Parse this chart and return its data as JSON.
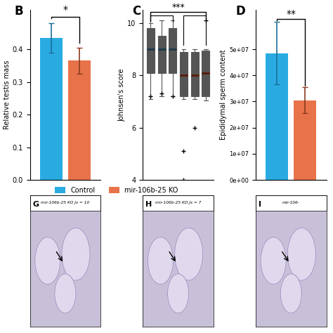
{
  "panel_B": {
    "label": "B",
    "bar_values": [
      0.435,
      0.365
    ],
    "bar_errors": [
      0.045,
      0.04
    ],
    "bar_colors": [
      "#29ABE2",
      "#E8734A"
    ],
    "bar_ecolors": [
      "#1A6E99",
      "#8B3A1E"
    ],
    "ylabel": "Relative testis mass",
    "ylim": [
      0.0,
      0.52
    ],
    "yticks": [
      0.0,
      0.1,
      0.2,
      0.3,
      0.4
    ],
    "sig": "*"
  },
  "panel_C": {
    "label": "C",
    "ylabel": "Johnsen's score",
    "ylim": [
      4,
      10.5
    ],
    "yticks": [
      4,
      6,
      8,
      10
    ],
    "sig": "***",
    "control_boxes": [
      {
        "med": 9.0,
        "q1": 8.1,
        "q3": 9.8,
        "whislo": 7.1,
        "whishi": 10.0,
        "fliers": [
          7.2
        ]
      },
      {
        "med": 9.0,
        "q1": 8.1,
        "q3": 9.5,
        "whislo": 7.2,
        "whishi": 10.1,
        "fliers": [
          7.3
        ]
      },
      {
        "med": 9.0,
        "q1": 8.1,
        "q3": 9.8,
        "whislo": 7.2,
        "whishi": 10.1,
        "fliers": [
          7.2
        ]
      }
    ],
    "ko_boxes": [
      {
        "med": 8.0,
        "q1": 7.2,
        "q3": 8.9,
        "whislo": 7.1,
        "whishi": 9.0,
        "fliers": [
          5.1,
          4.0
        ]
      },
      {
        "med": 8.0,
        "q1": 7.2,
        "q3": 8.9,
        "whislo": 7.1,
        "whishi": 9.0,
        "fliers": [
          6.0
        ]
      },
      {
        "med": 8.1,
        "q1": 7.2,
        "q3": 8.95,
        "whislo": 7.05,
        "whishi": 9.0,
        "fliers": [
          10.1
        ]
      }
    ],
    "control_color": "#29ABE2",
    "control_median_color": "#1A3A4A",
    "ko_color": "#E8734A",
    "ko_median_color": "#5A1A05"
  },
  "panel_D": {
    "label": "D",
    "bar_values": [
      48500000,
      30500000
    ],
    "bar_errors": [
      12000000,
      5000000
    ],
    "bar_colors": [
      "#29ABE2",
      "#E8734A"
    ],
    "bar_ecolors": [
      "#1A6E99",
      "#8B3A1E"
    ],
    "ylabel": "Epididymal sperm content",
    "ylim": [
      0,
      65000000
    ],
    "yticks": [
      0,
      10000000,
      20000000,
      30000000,
      40000000,
      50000000
    ],
    "yticklabels": [
      "0e+00",
      "1e+07",
      "2e+07",
      "3e+07",
      "4e+07",
      "5e+07"
    ],
    "sig": "**"
  },
  "legend": {
    "control_label": "Control",
    "ko_label": "mir-106b-25 KO",
    "control_color": "#29ABE2",
    "ko_color": "#E8734A"
  },
  "bottom_panels": {
    "labels": [
      "G",
      "H",
      "I"
    ],
    "top_texts": [
      "mir-106b-25 KO Js = 10",
      "mir-106b-25 KO Js = 7",
      "mir-106-"
    ],
    "bg_color": "#C8C0D8"
  },
  "background_color": "#FFFFFF"
}
